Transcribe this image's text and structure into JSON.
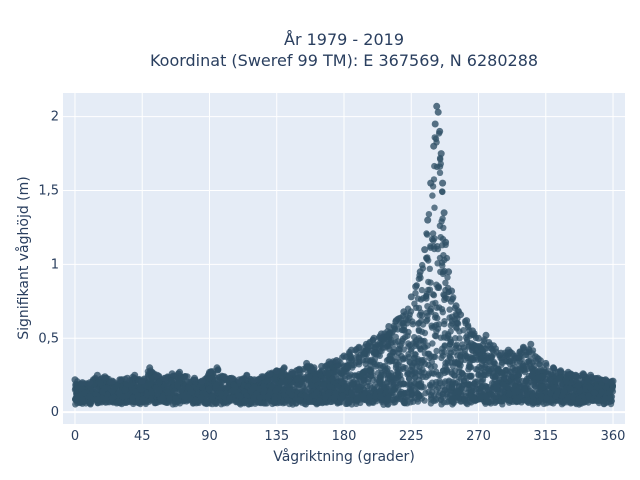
{
  "chart_data": {
    "type": "scatter",
    "title_lines": [
      "År 1979 - 2019",
      "Koordinat (Sweref 99 TM): E 367569, N 6280288"
    ],
    "xlabel": "Vågriktning (grader)",
    "ylabel": "Signifikant våghöjd (m)",
    "xlim": [
      -8,
      368
    ],
    "ylim": [
      -0.08,
      2.16
    ],
    "xticks": [
      0,
      45,
      90,
      135,
      180,
      225,
      270,
      315,
      360
    ],
    "xtick_labels": [
      "0",
      "45",
      "90",
      "135",
      "180",
      "225",
      "270",
      "315",
      "360"
    ],
    "yticks": [
      0,
      0.5,
      1,
      1.5,
      2
    ],
    "ytick_labels": [
      "0",
      "0,5",
      "1",
      "1,5",
      "2"
    ],
    "grid": true,
    "marker_color": "#2f5066",
    "plot_background": "#e5ecf6",
    "series": [
      {
        "description_points": "representative sampled points (direction, height)",
        "x": [
          0,
          5,
          10,
          15,
          20,
          25,
          30,
          35,
          40,
          45,
          50,
          55,
          60,
          65,
          70,
          75,
          80,
          85,
          90,
          95,
          100,
          105,
          110,
          115,
          120,
          125,
          130,
          135,
          140,
          145,
          150,
          155,
          160,
          165,
          170,
          175,
          180,
          185,
          190,
          195,
          200,
          205,
          210,
          215,
          220,
          225,
          228,
          231,
          234,
          236,
          238,
          240,
          241,
          242,
          243,
          244,
          245,
          246,
          247,
          248,
          250,
          252,
          255,
          258,
          262,
          266,
          270,
          275,
          280,
          285,
          290,
          295,
          300,
          305,
          310,
          315,
          320,
          325,
          330,
          335,
          340,
          345,
          350,
          355,
          360
        ],
        "y": [
          0.22,
          0.2,
          0.2,
          0.25,
          0.24,
          0.21,
          0.22,
          0.23,
          0.25,
          0.21,
          0.3,
          0.25,
          0.23,
          0.26,
          0.27,
          0.24,
          0.23,
          0.21,
          0.27,
          0.3,
          0.24,
          0.23,
          0.22,
          0.25,
          0.22,
          0.24,
          0.26,
          0.28,
          0.3,
          0.27,
          0.29,
          0.33,
          0.3,
          0.31,
          0.34,
          0.35,
          0.38,
          0.42,
          0.44,
          0.46,
          0.5,
          0.53,
          0.58,
          0.62,
          0.68,
          0.78,
          0.85,
          0.95,
          1.1,
          1.3,
          1.55,
          1.8,
          1.95,
          2.07,
          2.03,
          1.9,
          1.75,
          1.55,
          1.35,
          1.15,
          0.95,
          0.82,
          0.72,
          0.66,
          0.62,
          0.55,
          0.5,
          0.52,
          0.45,
          0.4,
          0.42,
          0.38,
          0.44,
          0.46,
          0.36,
          0.33,
          0.3,
          0.28,
          0.27,
          0.25,
          0.26,
          0.25,
          0.23,
          0.22,
          0.21
        ]
      }
    ]
  }
}
